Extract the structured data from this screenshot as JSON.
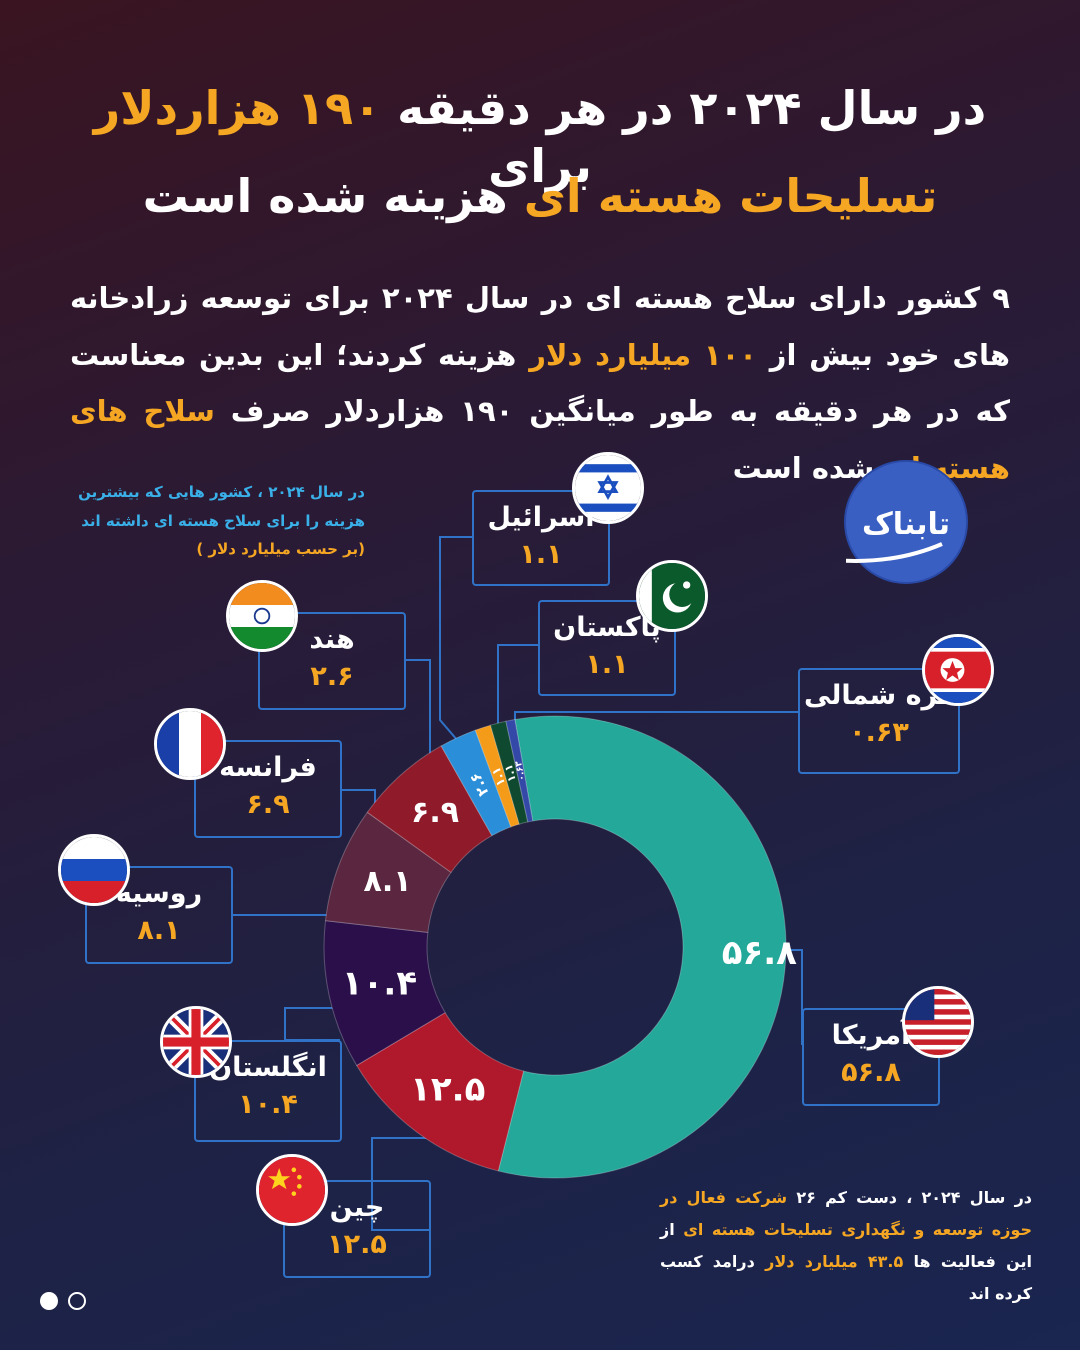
{
  "title": {
    "line1_a": "در سال ۲۰۲۴ در هر دقیقه",
    "line1_hl": "۱۹۰ هزاردلار",
    "line1_b": "برای",
    "line2_hl": "تسلیحات هسته ای",
    "line2_b": "هزینه شده است"
  },
  "intro": {
    "part1": "۹ کشور دارای سلاح هسته ای در سال ۲۰۲۴ برای توسعه زرادخانه های خود بیش از",
    "hl1": "۱۰۰ میلیارد دلار",
    "part2": "هزینه کردند؛ این بدین معناست که در هر دقیقه به طور میانگین ۱۹۰ هزاردلار صرف",
    "hl2": "سلاح های هسته ای",
    "part3": "شده است"
  },
  "chart_note": {
    "text": "در سال ۲۰۲۴ ، کشور هایی که بیشترین هزینه را برای سلاح هسته ای داشته اند",
    "unit": "(بر حسب میلیارد دلار )"
  },
  "footer_note": {
    "part1": "در سال ۲۰۲۴ ، دست کم ۲۶",
    "hl1": "شرکت فعال در حوزه توسعه و نگهداری تسلیحات هسته ای",
    "part2": "از این فعالیت ها",
    "hl2": "۴۳.۵ میلیارد دلار",
    "part3": "درامد کسب کرده اند"
  },
  "logo_text": "تابناک",
  "countries": {
    "usa": {
      "name": "آمریکا",
      "value_label": "۵۶.۸"
    },
    "china": {
      "name": "چین",
      "value_label": "۱۲.۵"
    },
    "uk": {
      "name": "انگلستان",
      "value_label": "۱۰.۴"
    },
    "russia": {
      "name": "روسیه",
      "value_label": "۸.۱"
    },
    "france": {
      "name": "فرانسه",
      "value_label": "۶.۹"
    },
    "india": {
      "name": "هند",
      "value_label": "۲.۶"
    },
    "israel": {
      "name": "اسرائیل",
      "value_label": "۱.۱"
    },
    "pakistan": {
      "name": "پاکستان",
      "value_label": "۱.۱"
    },
    "nkorea": {
      "name": "کره شمالی",
      "value_label": "۰.۶۳"
    }
  },
  "chart_data": {
    "type": "pie",
    "style": "donut",
    "unit": "billion USD",
    "slices": [
      {
        "key": "usa",
        "label": "آمریکا",
        "value": 56.8,
        "display": "۵۶.۸",
        "color": "#23a89a"
      },
      {
        "key": "china",
        "label": "چین",
        "value": 12.5,
        "display": "۱۲.۵",
        "color": "#b0182b"
      },
      {
        "key": "uk",
        "label": "انگلستان",
        "value": 10.4,
        "display": "۱۰.۴",
        "color": "#2b0f4a"
      },
      {
        "key": "russia",
        "label": "روسیه",
        "value": 8.1,
        "display": "۸.۱",
        "color": "#5a2640"
      },
      {
        "key": "france",
        "label": "فرانسه",
        "value": 6.9,
        "display": "۶.۹",
        "color": "#8f1a2a"
      },
      {
        "key": "india",
        "label": "هند",
        "value": 2.6,
        "display": "۲.۶",
        "color": "#2a8fd8"
      },
      {
        "key": "israel",
        "label": "اسرائیل",
        "value": 1.1,
        "display": "۱.۱",
        "color": "#f59b1a"
      },
      {
        "key": "pakistan",
        "label": "پاکستان",
        "value": 1.1,
        "display": "۱.۱",
        "color": "#0f4a30"
      },
      {
        "key": "nkorea",
        "label": "کره شمالی",
        "value": 0.63,
        "display": "۰.۶۳",
        "color": "#3448a8"
      }
    ]
  },
  "colors": {
    "accent": "#f5a623",
    "box_border": "#2f72c7",
    "note_blue": "#3ab0e8"
  }
}
